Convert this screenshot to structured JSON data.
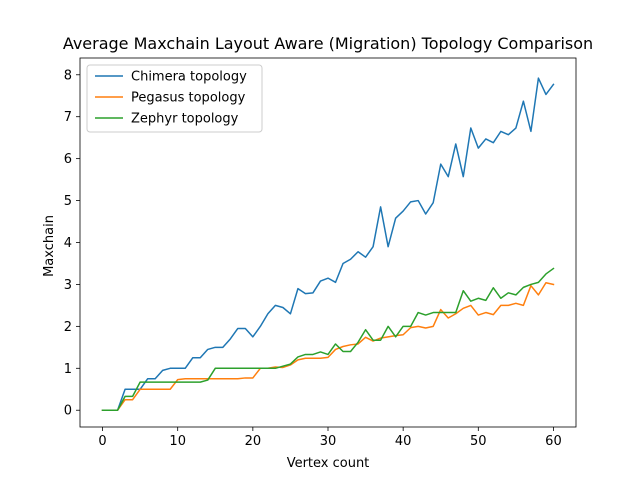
{
  "chart_data": {
    "type": "line",
    "title": "Average Maxchain Layout Aware (Migration) Topology Comparison",
    "xlabel": "Vertex count",
    "ylabel": "Maxchain",
    "xlim": [
      -3,
      63
    ],
    "ylim": [
      -0.4,
      8.4
    ],
    "xticks": [
      0,
      10,
      20,
      30,
      40,
      50,
      60
    ],
    "yticks": [
      0,
      1,
      2,
      3,
      4,
      5,
      6,
      7,
      8
    ],
    "grid": false,
    "legend_position": "top-left",
    "x": [
      0,
      1,
      2,
      3,
      4,
      5,
      6,
      7,
      8,
      9,
      10,
      11,
      12,
      13,
      14,
      15,
      16,
      17,
      18,
      19,
      20,
      21,
      22,
      23,
      24,
      25,
      26,
      27,
      28,
      29,
      30,
      31,
      32,
      33,
      34,
      35,
      36,
      37,
      38,
      39,
      40,
      41,
      42,
      43,
      44,
      45,
      46,
      47,
      48,
      49,
      50,
      51,
      52,
      53,
      54,
      55,
      56,
      57,
      58,
      59,
      60
    ],
    "series": [
      {
        "name": "Chimera topology",
        "color": "#1f77b4",
        "values": [
          0,
          0,
          0,
          0.5,
          0.5,
          0.5,
          0.75,
          0.75,
          0.95,
          1.0,
          1.0,
          1.0,
          1.25,
          1.25,
          1.45,
          1.5,
          1.5,
          1.7,
          1.95,
          1.95,
          1.75,
          2.0,
          2.3,
          2.5,
          2.45,
          2.3,
          2.9,
          2.78,
          2.8,
          3.08,
          3.15,
          3.05,
          3.5,
          3.6,
          3.78,
          3.65,
          3.9,
          4.85,
          3.9,
          4.58,
          4.75,
          4.97,
          5.0,
          4.68,
          4.95,
          5.87,
          5.57,
          6.35,
          5.57,
          6.73,
          6.25,
          6.47,
          6.38,
          6.65,
          6.57,
          6.73,
          7.37,
          6.65,
          7.92,
          7.53,
          7.77
        ]
      },
      {
        "name": "Pegasus topology",
        "color": "#ff7f0e",
        "values": [
          0,
          0,
          0,
          0.25,
          0.25,
          0.5,
          0.5,
          0.5,
          0.5,
          0.5,
          0.73,
          0.75,
          0.75,
          0.75,
          0.75,
          0.75,
          0.75,
          0.75,
          0.75,
          0.77,
          0.77,
          1.0,
          1.0,
          1.03,
          1.02,
          1.08,
          1.2,
          1.24,
          1.24,
          1.24,
          1.26,
          1.45,
          1.52,
          1.56,
          1.58,
          1.74,
          1.65,
          1.72,
          1.75,
          1.78,
          1.8,
          1.97,
          2.0,
          1.96,
          2.0,
          2.4,
          2.2,
          2.3,
          2.43,
          2.5,
          2.27,
          2.33,
          2.28,
          2.5,
          2.5,
          2.55,
          2.5,
          2.97,
          2.75,
          3.04,
          3.0
        ]
      },
      {
        "name": "Zephyr topology",
        "color": "#2ca02c",
        "values": [
          0,
          0,
          0,
          0.33,
          0.33,
          0.67,
          0.67,
          0.67,
          0.67,
          0.67,
          0.67,
          0.67,
          0.67,
          0.67,
          0.72,
          1.0,
          1.0,
          1.0,
          1.0,
          1.0,
          1.0,
          1.0,
          1.0,
          1.0,
          1.05,
          1.1,
          1.27,
          1.33,
          1.33,
          1.39,
          1.33,
          1.58,
          1.4,
          1.4,
          1.62,
          1.92,
          1.67,
          1.67,
          2.0,
          1.75,
          2.0,
          2.0,
          2.33,
          2.27,
          2.33,
          2.33,
          2.33,
          2.33,
          2.85,
          2.6,
          2.67,
          2.62,
          2.92,
          2.67,
          2.8,
          2.75,
          2.93,
          3.0,
          3.05,
          3.25,
          3.38
        ]
      }
    ]
  }
}
